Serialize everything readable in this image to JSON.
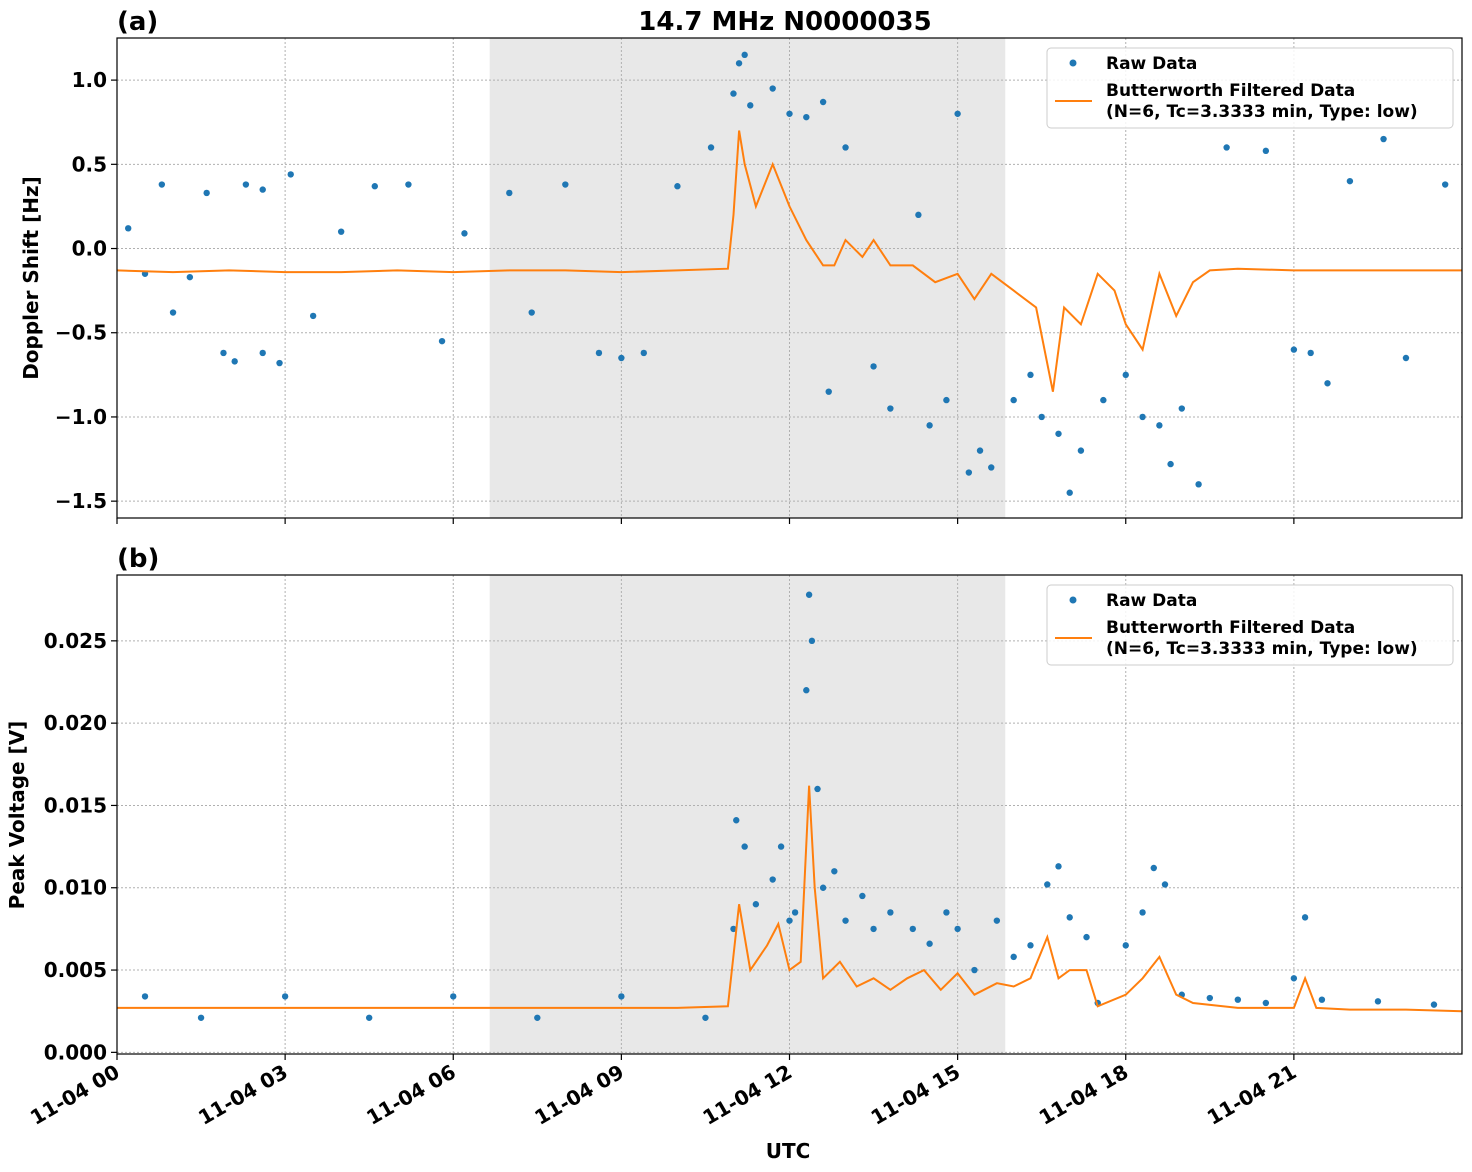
{
  "figure": {
    "title": "14.7 MHz N0000035",
    "xlabel": "UTC"
  },
  "colors": {
    "raw": "#1f77b4",
    "filtered": "#ff7f0e",
    "shade": "#e8e8e8",
    "grid": "#b0b0b0"
  },
  "chart_data": [
    {
      "type": "scatter",
      "panel_label": "(a)",
      "ylabel": "Doppler Shift [Hz]",
      "xlim_hours": [
        0,
        24
      ],
      "ylim": [
        -1.6,
        1.25
      ],
      "x_ticks": [
        {
          "hour": 0,
          "label": "11-04 00"
        },
        {
          "hour": 3,
          "label": "11-04 03"
        },
        {
          "hour": 6,
          "label": "11-04 06"
        },
        {
          "hour": 9,
          "label": "11-04 09"
        },
        {
          "hour": 12,
          "label": "11-04 12"
        },
        {
          "hour": 15,
          "label": "11-04 15"
        },
        {
          "hour": 18,
          "label": "11-04 18"
        },
        {
          "hour": 21,
          "label": "11-04 21"
        }
      ],
      "y_ticks": [
        {
          "value": 1.0,
          "label": "1.0"
        },
        {
          "value": 0.5,
          "label": "0.5"
        },
        {
          "value": 0.0,
          "label": "0.0"
        },
        {
          "value": -0.5,
          "label": "−0.5"
        },
        {
          "value": -1.0,
          "label": "−1.0"
        },
        {
          "value": -1.5,
          "label": "−1.5"
        }
      ],
      "shaded_interval_hours": [
        6.65,
        15.85
      ],
      "grid": true,
      "legend": {
        "placement": "top-right",
        "entries": [
          {
            "label": "Raw Data",
            "kind": "marker"
          },
          {
            "label": "Butterworth Filtered Data",
            "label2": "(N=6, Tc=3.3333 min, Type: low)",
            "kind": "line"
          }
        ]
      },
      "series": [
        {
          "name": "Raw Data",
          "points": [
            [
              0.2,
              0.12
            ],
            [
              0.5,
              -0.15
            ],
            [
              0.8,
              0.38
            ],
            [
              1.0,
              -0.38
            ],
            [
              1.3,
              -0.17
            ],
            [
              1.6,
              0.33
            ],
            [
              1.9,
              -0.62
            ],
            [
              2.1,
              -0.67
            ],
            [
              2.3,
              0.38
            ],
            [
              2.6,
              0.35
            ],
            [
              2.6,
              -0.62
            ],
            [
              2.9,
              -0.68
            ],
            [
              3.1,
              0.44
            ],
            [
              3.5,
              -0.4
            ],
            [
              4.0,
              0.1
            ],
            [
              4.6,
              0.37
            ],
            [
              5.2,
              0.38
            ],
            [
              5.8,
              -0.55
            ],
            [
              6.2,
              0.09
            ],
            [
              7.0,
              0.33
            ],
            [
              7.4,
              -0.38
            ],
            [
              8.0,
              0.38
            ],
            [
              8.6,
              -0.62
            ],
            [
              9.0,
              -0.65
            ],
            [
              9.4,
              -0.62
            ],
            [
              10.0,
              0.37
            ],
            [
              10.6,
              0.6
            ],
            [
              11.0,
              0.92
            ],
            [
              11.1,
              1.1
            ],
            [
              11.2,
              1.15
            ],
            [
              11.3,
              0.85
            ],
            [
              11.7,
              0.95
            ],
            [
              12.0,
              0.8
            ],
            [
              12.3,
              0.78
            ],
            [
              12.6,
              0.87
            ],
            [
              12.7,
              -0.85
            ],
            [
              13.0,
              0.6
            ],
            [
              13.5,
              -0.7
            ],
            [
              13.8,
              -0.95
            ],
            [
              14.3,
              0.2
            ],
            [
              14.5,
              -1.05
            ],
            [
              14.8,
              -0.9
            ],
            [
              15.0,
              0.8
            ],
            [
              15.2,
              -1.33
            ],
            [
              15.4,
              -1.2
            ],
            [
              15.6,
              -1.3
            ],
            [
              16.0,
              -0.9
            ],
            [
              16.3,
              -0.75
            ],
            [
              16.5,
              -1.0
            ],
            [
              16.8,
              -1.1
            ],
            [
              17.0,
              -1.45
            ],
            [
              17.2,
              -1.2
            ],
            [
              17.6,
              -0.9
            ],
            [
              18.0,
              -0.75
            ],
            [
              18.3,
              -1.0
            ],
            [
              18.6,
              -1.05
            ],
            [
              18.8,
              -1.28
            ],
            [
              19.0,
              -0.95
            ],
            [
              19.3,
              -1.4
            ],
            [
              19.8,
              0.6
            ],
            [
              20.5,
              0.58
            ],
            [
              21.0,
              -0.6
            ],
            [
              21.3,
              -0.62
            ],
            [
              21.6,
              -0.8
            ],
            [
              22.0,
              0.4
            ],
            [
              22.6,
              0.65
            ],
            [
              23.0,
              -0.65
            ],
            [
              23.7,
              0.38
            ]
          ]
        },
        {
          "name": "Butterworth Filtered Data",
          "points": [
            [
              0,
              -0.13
            ],
            [
              1,
              -0.14
            ],
            [
              2,
              -0.13
            ],
            [
              3,
              -0.14
            ],
            [
              4,
              -0.14
            ],
            [
              5,
              -0.13
            ],
            [
              6,
              -0.14
            ],
            [
              7,
              -0.13
            ],
            [
              8,
              -0.13
            ],
            [
              9,
              -0.14
            ],
            [
              10,
              -0.13
            ],
            [
              10.9,
              -0.12
            ],
            [
              11.0,
              0.2
            ],
            [
              11.1,
              0.7
            ],
            [
              11.2,
              0.5
            ],
            [
              11.4,
              0.25
            ],
            [
              11.7,
              0.5
            ],
            [
              12.0,
              0.25
            ],
            [
              12.3,
              0.05
            ],
            [
              12.6,
              -0.1
            ],
            [
              12.8,
              -0.1
            ],
            [
              13.0,
              0.05
            ],
            [
              13.3,
              -0.05
            ],
            [
              13.5,
              0.05
            ],
            [
              13.8,
              -0.1
            ],
            [
              14.2,
              -0.1
            ],
            [
              14.6,
              -0.2
            ],
            [
              15.0,
              -0.15
            ],
            [
              15.3,
              -0.3
            ],
            [
              15.6,
              -0.15
            ],
            [
              16.0,
              -0.25
            ],
            [
              16.4,
              -0.35
            ],
            [
              16.7,
              -0.85
            ],
            [
              16.9,
              -0.35
            ],
            [
              17.2,
              -0.45
            ],
            [
              17.5,
              -0.15
            ],
            [
              17.8,
              -0.25
            ],
            [
              18.0,
              -0.45
            ],
            [
              18.3,
              -0.6
            ],
            [
              18.6,
              -0.15
            ],
            [
              18.9,
              -0.4
            ],
            [
              19.2,
              -0.2
            ],
            [
              19.5,
              -0.13
            ],
            [
              20,
              -0.12
            ],
            [
              21,
              -0.13
            ],
            [
              22,
              -0.13
            ],
            [
              23,
              -0.13
            ],
            [
              24,
              -0.13
            ]
          ]
        }
      ]
    },
    {
      "type": "scatter",
      "panel_label": "(b)",
      "ylabel": "Peak Voltage [V]",
      "xlim_hours": [
        0,
        24
      ],
      "ylim": [
        -0.0001,
        0.029
      ],
      "x_ticks": [
        {
          "hour": 0,
          "label": "11-04 00"
        },
        {
          "hour": 3,
          "label": "11-04 03"
        },
        {
          "hour": 6,
          "label": "11-04 06"
        },
        {
          "hour": 9,
          "label": "11-04 09"
        },
        {
          "hour": 12,
          "label": "11-04 12"
        },
        {
          "hour": 15,
          "label": "11-04 15"
        },
        {
          "hour": 18,
          "label": "11-04 18"
        },
        {
          "hour": 21,
          "label": "11-04 21"
        }
      ],
      "y_ticks": [
        {
          "value": 0.025,
          "label": "0.025"
        },
        {
          "value": 0.02,
          "label": "0.020"
        },
        {
          "value": 0.015,
          "label": "0.015"
        },
        {
          "value": 0.01,
          "label": "0.010"
        },
        {
          "value": 0.005,
          "label": "0.005"
        },
        {
          "value": 0.0,
          "label": "0.000"
        }
      ],
      "shaded_interval_hours": [
        6.65,
        15.85
      ],
      "grid": true,
      "legend": {
        "placement": "top-right",
        "entries": [
          {
            "label": "Raw Data",
            "kind": "marker"
          },
          {
            "label": "Butterworth Filtered Data",
            "label2": "(N=6, Tc=3.3333 min, Type: low)",
            "kind": "line"
          }
        ]
      },
      "series": [
        {
          "name": "Raw Data",
          "points": [
            [
              0.5,
              0.0034
            ],
            [
              1.5,
              0.0021
            ],
            [
              3.0,
              0.0034
            ],
            [
              4.5,
              0.0021
            ],
            [
              6.0,
              0.0034
            ],
            [
              7.5,
              0.0021
            ],
            [
              9.0,
              0.0034
            ],
            [
              10.5,
              0.0021
            ],
            [
              11.0,
              0.0075
            ],
            [
              11.05,
              0.0141
            ],
            [
              11.2,
              0.0125
            ],
            [
              11.4,
              0.009
            ],
            [
              11.7,
              0.0105
            ],
            [
              11.85,
              0.0125
            ],
            [
              12.0,
              0.008
            ],
            [
              12.1,
              0.0085
            ],
            [
              12.3,
              0.022
            ],
            [
              12.35,
              0.0278
            ],
            [
              12.4,
              0.025
            ],
            [
              12.5,
              0.016
            ],
            [
              12.6,
              0.01
            ],
            [
              12.8,
              0.011
            ],
            [
              13.0,
              0.008
            ],
            [
              13.3,
              0.0095
            ],
            [
              13.5,
              0.0075
            ],
            [
              13.8,
              0.0085
            ],
            [
              14.2,
              0.0075
            ],
            [
              14.5,
              0.0066
            ],
            [
              14.8,
              0.0085
            ],
            [
              15.0,
              0.0075
            ],
            [
              15.3,
              0.005
            ],
            [
              15.7,
              0.008
            ],
            [
              16.0,
              0.0058
            ],
            [
              16.3,
              0.0065
            ],
            [
              16.6,
              0.0102
            ],
            [
              16.8,
              0.0113
            ],
            [
              17.0,
              0.0082
            ],
            [
              17.3,
              0.007
            ],
            [
              17.5,
              0.003
            ],
            [
              18.0,
              0.0065
            ],
            [
              18.3,
              0.0085
            ],
            [
              18.5,
              0.0112
            ],
            [
              18.7,
              0.0102
            ],
            [
              19.0,
              0.0035
            ],
            [
              19.5,
              0.0033
            ],
            [
              20.0,
              0.0032
            ],
            [
              20.5,
              0.003
            ],
            [
              21.0,
              0.0045
            ],
            [
              21.2,
              0.0082
            ],
            [
              21.5,
              0.0032
            ],
            [
              22.5,
              0.0031
            ],
            [
              23.5,
              0.0029
            ]
          ]
        },
        {
          "name": "Butterworth Filtered Data",
          "points": [
            [
              0,
              0.0027
            ],
            [
              1,
              0.0027
            ],
            [
              2,
              0.0027
            ],
            [
              3,
              0.0027
            ],
            [
              4,
              0.0027
            ],
            [
              5,
              0.0027
            ],
            [
              6,
              0.0027
            ],
            [
              7,
              0.0027
            ],
            [
              8,
              0.0027
            ],
            [
              9,
              0.0027
            ],
            [
              10,
              0.0027
            ],
            [
              10.9,
              0.0028
            ],
            [
              11.1,
              0.009
            ],
            [
              11.3,
              0.005
            ],
            [
              11.6,
              0.0065
            ],
            [
              11.8,
              0.0078
            ],
            [
              12.0,
              0.005
            ],
            [
              12.2,
              0.0055
            ],
            [
              12.35,
              0.0162
            ],
            [
              12.45,
              0.01
            ],
            [
              12.6,
              0.0045
            ],
            [
              12.9,
              0.0055
            ],
            [
              13.2,
              0.004
            ],
            [
              13.5,
              0.0045
            ],
            [
              13.8,
              0.0038
            ],
            [
              14.1,
              0.0045
            ],
            [
              14.4,
              0.005
            ],
            [
              14.7,
              0.0038
            ],
            [
              15.0,
              0.0048
            ],
            [
              15.3,
              0.0035
            ],
            [
              15.7,
              0.0042
            ],
            [
              16.0,
              0.004
            ],
            [
              16.3,
              0.0045
            ],
            [
              16.6,
              0.007
            ],
            [
              16.8,
              0.0045
            ],
            [
              17.0,
              0.005
            ],
            [
              17.3,
              0.005
            ],
            [
              17.5,
              0.0028
            ],
            [
              18.0,
              0.0035
            ],
            [
              18.3,
              0.0045
            ],
            [
              18.6,
              0.0058
            ],
            [
              18.9,
              0.0035
            ],
            [
              19.2,
              0.003
            ],
            [
              20,
              0.0027
            ],
            [
              21,
              0.0027
            ],
            [
              21.2,
              0.0045
            ],
            [
              21.4,
              0.0027
            ],
            [
              22,
              0.0026
            ],
            [
              23,
              0.0026
            ],
            [
              24,
              0.0025
            ]
          ]
        }
      ]
    }
  ]
}
